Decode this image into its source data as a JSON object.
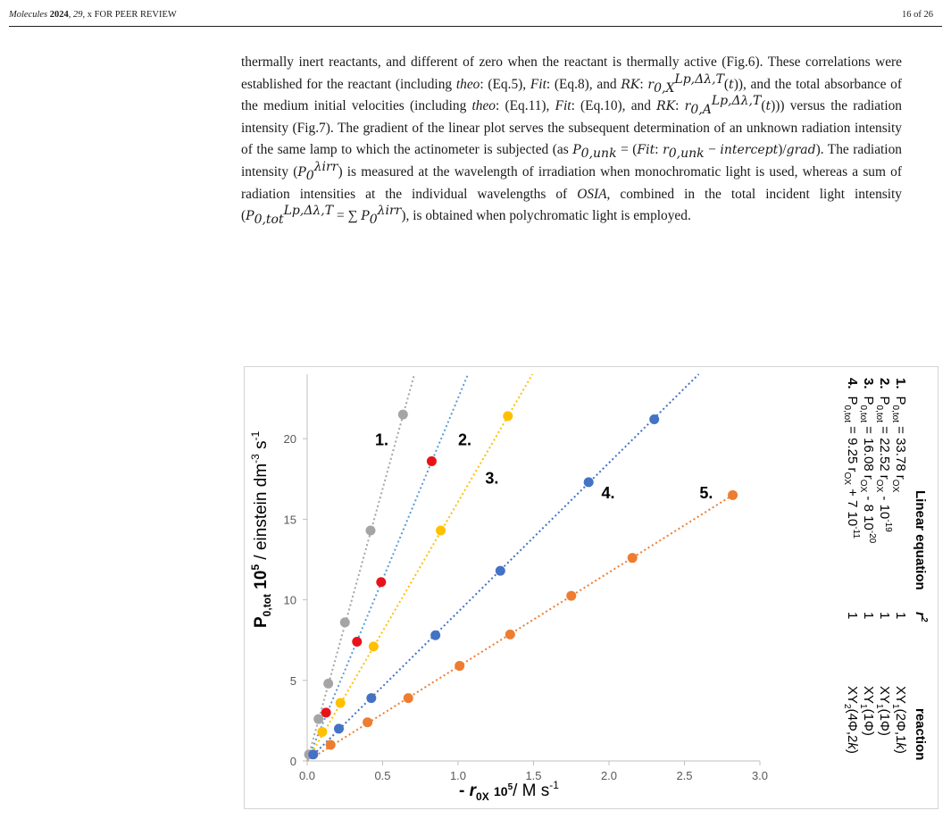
{
  "header": {
    "journal": "Molecules",
    "year": "2024",
    "volume": "29",
    "rest": ", x FOR PEER REVIEW",
    "page": "16 of 26"
  },
  "paragraph": {
    "s1": "thermally inert reactants, and different of zero when the reactant is thermally active (Fig.6). These correlations were established for the reactant (including ",
    "theo": "theo",
    "s2": ": (Eq.5), ",
    "fit": "Fit",
    "s3": ": (Eq.8), and ",
    "rk": "RK",
    "s4": "), and the total absorbance of the medium initial velocities (including ",
    "s5": ": (Eq.11), ",
    "s6": ": (Eq.10), and ",
    "s7": ")) versus the radiation intensity (Fig.7). The gradient of the linear plot serves the subsequent determination of an unknown radiation intensity of the same lamp to which the actinometer is subjected (as ",
    "s8": "). The radiation intensity (",
    "s9": ") is measured at the wavelength of irradiation when monochromatic light is used, whereas a sum of radiation intensities at the individual wavelengths of ",
    "osia": "OSIA",
    "s10": ", combined in the total incident light intensity (",
    "s11": "), is obtained when polychromatic light is employed."
  },
  "chart_data": {
    "type": "scatter",
    "ylabel_main": "P",
    "ylabel_sub": "0,tot",
    "ylabel_pow": "10",
    "ylabel_pow_sup": "5",
    "ylabel_unit": "/ einstein dm",
    "ylabel_unit_sup1": "-3",
    "ylabel_unit_mid": " s",
    "ylabel_unit_sup2": "-1",
    "xlabel_minus": "- ",
    "xlabel_r": "r",
    "xlabel_sub": "0X",
    "xlabel_pow": "10",
    "xlabel_pow_sup": "5",
    "xlabel_unit": "/ M s",
    "xlabel_unit_sup": "-1",
    "xlim": [
      0,
      3.0
    ],
    "ylim": [
      0,
      24
    ],
    "xticks": [
      "0.0",
      "0.5",
      "1.0",
      "1.5",
      "2.0",
      "2.5",
      "3.0"
    ],
    "xtick_values": [
      0,
      0.5,
      1.0,
      1.5,
      2.0,
      2.5,
      3.0
    ],
    "yticks": [
      "0",
      "5",
      "10",
      "15",
      "20"
    ],
    "ytick_values": [
      0,
      5,
      10,
      15,
      20
    ],
    "series": [
      {
        "name": "1.",
        "color": "#a5a5a5",
        "trend_color": "#a5a5a5",
        "slope": 33.78,
        "x": [
          0.012,
          0.075,
          0.14,
          0.25,
          0.42,
          0.635
        ],
        "y": [
          0.4,
          2.6,
          4.8,
          8.6,
          14.3,
          21.5
        ]
      },
      {
        "name": "2.",
        "color": "#e8131a",
        "trend_color": "#5b9bd5",
        "slope": 22.52,
        "x": [
          0.125,
          0.33,
          0.49,
          0.825
        ],
        "y": [
          3.0,
          7.4,
          11.1,
          18.6
        ]
      },
      {
        "name": "3.",
        "color": "#ffc000",
        "trend_color": "#ffc000",
        "slope": 16.08,
        "x": [
          0.1,
          0.22,
          0.44,
          0.885,
          1.33
        ],
        "y": [
          1.8,
          3.6,
          7.1,
          14.3,
          21.4
        ]
      },
      {
        "name": "4.",
        "color": "#4472c4",
        "trend_color": "#4472c4",
        "slope": 9.25,
        "x": [
          0.04,
          0.21,
          0.425,
          0.85,
          1.28,
          1.865,
          2.3
        ],
        "y": [
          0.4,
          2.0,
          3.9,
          7.8,
          11.8,
          17.3,
          21.2
        ]
      },
      {
        "name": "5.",
        "color": "#ed7d31",
        "trend_color": "#ed7d31",
        "slope": 5.85,
        "x": [
          0.155,
          0.4,
          0.67,
          1.01,
          1.345,
          1.75,
          2.155,
          2.82
        ],
        "y": [
          1.0,
          2.4,
          3.9,
          5.9,
          7.85,
          10.25,
          12.6,
          16.5
        ]
      }
    ],
    "legend": {
      "col_headers": [
        "Linear equation",
        "r",
        "reaction"
      ],
      "r_sup": "2",
      "rows": [
        {
          "num": "1.",
          "P": "P",
          "Psub": "0,tot",
          "eq": " = 33.78 r",
          "rsub": "OX",
          "tail": "",
          "tailsup": "",
          "r2": "1",
          "rx": "XY",
          "rxsub": "1",
          "rxtail": "(2Φ,1",
          "k": "k",
          "end": ")"
        },
        {
          "num": "2.",
          "P": "P",
          "Psub": "0,tot",
          "eq": " = 22.52 r",
          "rsub": "OX",
          "tail": " - 10",
          "tailsup": "-19",
          "r2": "1",
          "rx": "XY",
          "rxsub": "1",
          "rxtail": "(1Φ)",
          "k": "",
          "end": ""
        },
        {
          "num": "3.",
          "P": "P",
          "Psub": "0,tot",
          "eq": " = 16.08 r",
          "rsub": "OX",
          "tail": " - 8 10",
          "tailsup": "-20",
          "r2": "1",
          "rx": "XY",
          "rxsub": "1",
          "rxtail": "(1Φ)",
          "k": "",
          "end": ""
        },
        {
          "num": "4.",
          "P": "P",
          "Psub": "0,tot",
          "eq": " = 9.25 r",
          "rsub": "OX",
          "tail": " + 7 10",
          "tailsup": "-11",
          "r2": "1",
          "rx": "XY",
          "rxsub": "2",
          "rxtail": "(4Φ,2",
          "k": "k",
          "end": ")"
        }
      ]
    }
  }
}
